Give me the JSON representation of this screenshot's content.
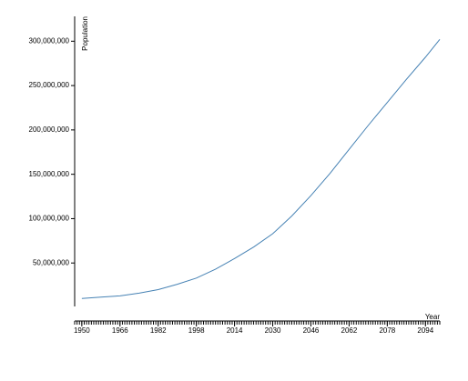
{
  "chart_data": {
    "type": "line",
    "x_label": "Year",
    "y_label": "Population",
    "x": [
      1950,
      1958,
      1966,
      1974,
      1982,
      1990,
      1998,
      2006,
      2014,
      2022,
      2030,
      2038,
      2046,
      2054,
      2062,
      2070,
      2078,
      2086,
      2094,
      2100
    ],
    "series": [
      {
        "name": "Population",
        "color": "#4682b4",
        "values": [
          10000000,
          11500000,
          13000000,
          16000000,
          20000000,
          26000000,
          33000000,
          43000000,
          55000000,
          68000000,
          83000000,
          103000000,
          126000000,
          151000000,
          178000000,
          205000000,
          231000000,
          257000000,
          282000000,
          302000000
        ]
      }
    ],
    "xlim": [
      1947,
      2100
    ],
    "xticks": [
      1950,
      1966,
      1982,
      1998,
      2014,
      2030,
      2046,
      2062,
      2078,
      2094
    ],
    "minor_xtick_step": 1,
    "ylim": [
      0,
      328000000
    ],
    "yticks": [
      {
        "value": 50000000,
        "label": "50,000,000"
      },
      {
        "value": 100000000,
        "label": "100,000,000"
      },
      {
        "value": 150000000,
        "label": "150,000,000"
      },
      {
        "value": 200000000,
        "label": "200,000,000"
      },
      {
        "value": 250000000,
        "label": "250,000,000"
      },
      {
        "value": 300000000,
        "label": "300,000,000"
      }
    ]
  }
}
